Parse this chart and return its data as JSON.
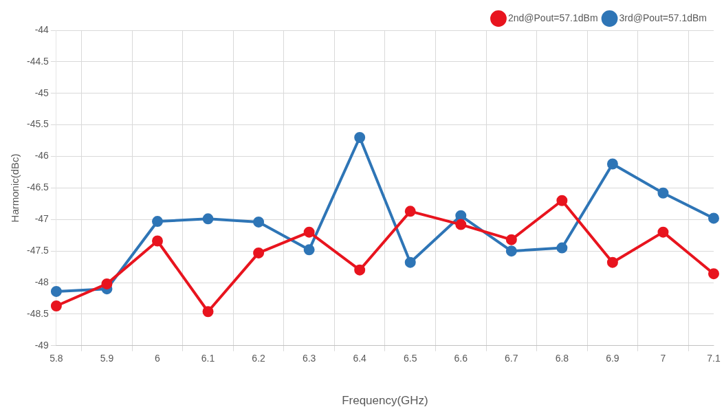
{
  "chart_data": {
    "type": "line",
    "xlabel": "Frequency(GHz)",
    "ylabel": "Harmonic(dBc)",
    "categories": [
      "5.8",
      "5.9",
      "6",
      "6.1",
      "6.2",
      "6.3",
      "6.4",
      "6.5",
      "6.6",
      "6.7",
      "6.8",
      "6.9",
      "7",
      "7.1"
    ],
    "series": [
      {
        "name": "2nd@Pout=57.1dBm",
        "color": "#e8141e",
        "values": [
          -48.37,
          -48.02,
          -47.34,
          -48.46,
          -47.53,
          -47.2,
          -47.8,
          -46.87,
          -47.08,
          -47.32,
          -46.7,
          -47.68,
          -47.2,
          -47.86
        ]
      },
      {
        "name": "3rd@Pout=57.1dBm",
        "color": "#2e75b6",
        "values": [
          -48.14,
          -48.1,
          -47.03,
          -46.99,
          -47.04,
          -47.48,
          -45.7,
          -47.68,
          -46.94,
          -47.5,
          -47.45,
          -46.12,
          -46.58,
          -46.98
        ]
      }
    ],
    "ylim": [
      -49,
      -44
    ],
    "yticks": [
      -49,
      -48.5,
      -48,
      -47.5,
      -47,
      -46.5,
      -46,
      -45.5,
      -45,
      -44.5,
      -44
    ],
    "grid": true,
    "legend": "top right",
    "marker": "circle",
    "line_style": "solid"
  }
}
